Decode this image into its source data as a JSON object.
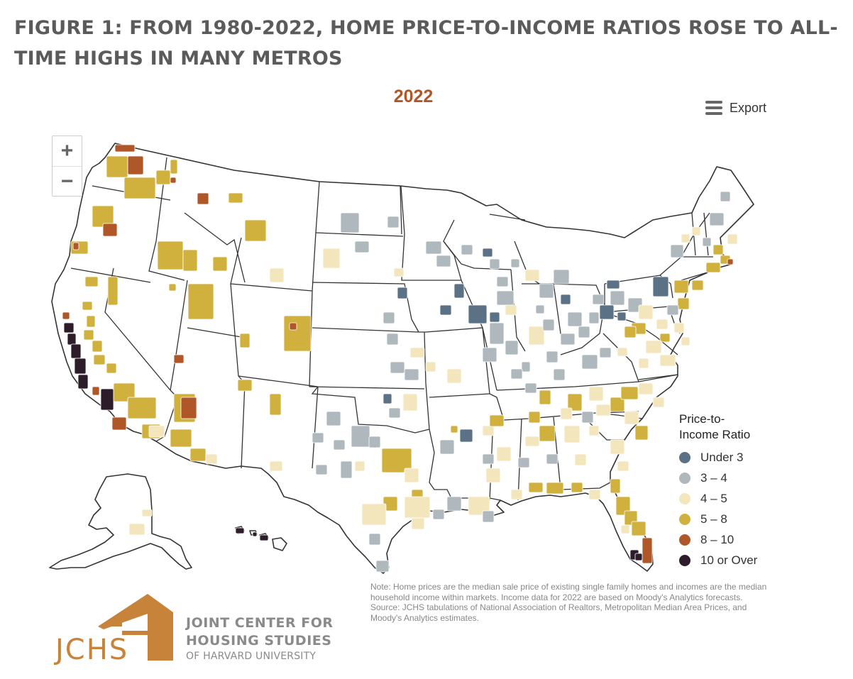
{
  "figure": {
    "title": "FIGURE 1: FROM 1980-2022, HOME PRICE-TO-INCOME RATIOS ROSE TO ALL-TIME HIGHS IN MANY METROS",
    "year": "2022"
  },
  "toolbar": {
    "export_label": "Export",
    "zoom_in": "+",
    "zoom_out": "−"
  },
  "legend": {
    "title_line1": "Price-to-",
    "title_line2": "Income Ratio",
    "items": [
      {
        "label": "Under 3",
        "color": "#5b7186"
      },
      {
        "label": "3 – 4",
        "color": "#aeb8bd"
      },
      {
        "label": "4 – 5",
        "color": "#f3e6bd"
      },
      {
        "label": "5 – 8",
        "color": "#d1b13e"
      },
      {
        "label": "8 – 10",
        "color": "#b0572a"
      },
      {
        "label": "10 or Over",
        "color": "#2d1d2b"
      }
    ]
  },
  "chart_data": {
    "type": "choropleth",
    "geography": "U.S. metro areas",
    "year": "2022",
    "classes": [
      "Under 3",
      "3 – 4",
      "4 – 5",
      "5 – 8",
      "8 – 10",
      "10 or Over"
    ]
  },
  "note": {
    "line1": "Note: Home prices are the median sale price of existing single family homes and incomes are the median household income within markets. Income data for 2022 are based on Moody's Analytics forecasts.",
    "line2": "Source: JCHS tabulations of National Association of Realtors, Metropolitan Median Area Prices, and Moody's Analytics estimates."
  },
  "logo": {
    "mark": "JCHS",
    "line1": "JOINT CENTER FOR",
    "line2": "HOUSING STUDIES",
    "line3": "OF HARVARD UNIVERSITY",
    "color": "#c8833a"
  }
}
